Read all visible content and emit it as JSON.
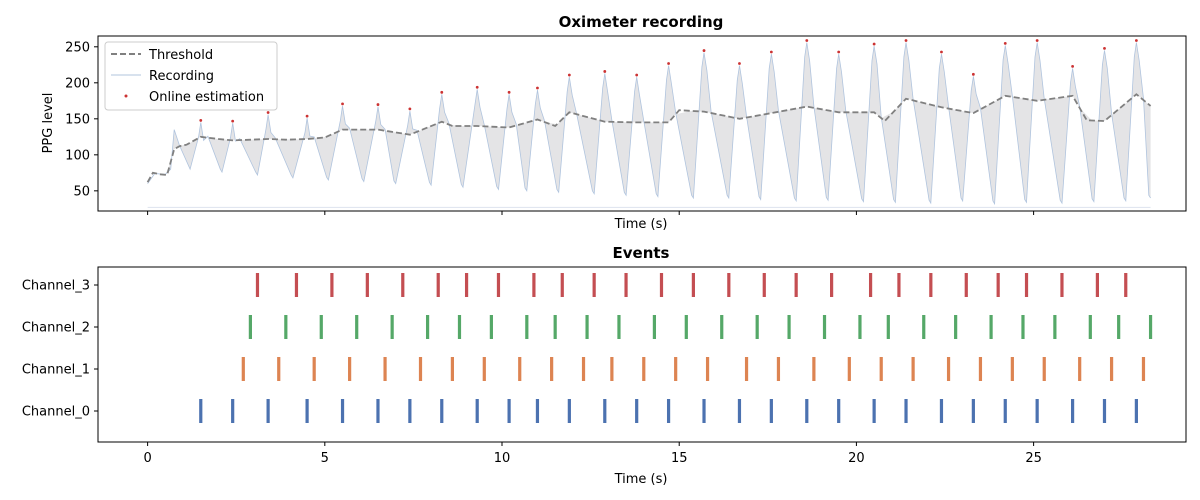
{
  "chart_data": [
    {
      "type": "line",
      "title": "Oximeter recording",
      "xlabel": "Time (s)",
      "ylabel": "PPG level",
      "xlim": [
        -1.4,
        29.3
      ],
      "ylim": [
        22,
        265
      ],
      "yticks": [
        50,
        100,
        150,
        200,
        250
      ],
      "xticks": [
        0,
        5,
        10,
        15,
        20,
        25
      ],
      "show_x_tick_labels": false,
      "legend": {
        "placement": "top-left",
        "entries": [
          "Threshold",
          "Recording",
          "Online estimation"
        ]
      },
      "colors": {
        "threshold": "#808080",
        "recording": "#b0c4de",
        "fill": "#e4e4e6",
        "peaks": "#cc3333"
      },
      "peaks": {
        "name": "Online estimation",
        "x": [
          1.5,
          2.4,
          3.4,
          4.5,
          5.5,
          6.5,
          7.4,
          8.3,
          9.3,
          10.2,
          11.0,
          11.9,
          12.9,
          13.8,
          14.7,
          15.7,
          16.7,
          17.6,
          18.6,
          19.5,
          20.5,
          21.4,
          22.4,
          23.3,
          24.2,
          25.1,
          26.1,
          27.0,
          27.9
        ],
        "y": [
          145,
          144,
          156,
          151,
          168,
          167,
          161,
          184,
          191,
          184,
          190,
          208,
          213,
          208,
          224,
          242,
          224,
          240,
          256,
          240,
          251,
          256,
          240,
          209,
          252,
          256,
          220,
          245,
          256
        ]
      },
      "threshold": {
        "name": "Threshold",
        "x": [
          0,
          0.15,
          0.35,
          0.55,
          0.75,
          0.9,
          1.1,
          1.5,
          2.0,
          2.4,
          3.4,
          3.9,
          4.5,
          5.0,
          5.5,
          6.5,
          7.4,
          8.3,
          8.6,
          9.3,
          10.2,
          11.0,
          11.5,
          11.9,
          12.9,
          13.8,
          14.7,
          15.0,
          15.7,
          16.7,
          17.6,
          18.6,
          19.5,
          20.5,
          20.8,
          21.4,
          22.4,
          23.3,
          24.2,
          25.1,
          26.1,
          26.5,
          27.0,
          27.9,
          28.3
        ],
        "y": [
          62,
          75,
          73,
          72,
          108,
          112,
          114,
          125,
          122,
          120,
          122,
          121,
          122,
          124,
          135,
          135,
          128,
          146,
          140,
          140,
          138,
          149,
          140,
          159,
          146,
          145,
          145,
          162,
          160,
          150,
          158,
          167,
          159,
          159,
          147,
          178,
          166,
          158,
          182,
          175,
          182,
          148,
          147,
          184,
          168
        ]
      },
      "recording_troughs": {
        "name": "Recording",
        "x": [
          1.2,
          2.1,
          3.1,
          4.1,
          5.1,
          6.1,
          7.0,
          8.0,
          8.9,
          9.9,
          10.7,
          11.6,
          12.6,
          13.5,
          14.4,
          15.4,
          16.4,
          17.3,
          18.3,
          19.2,
          20.2,
          21.1,
          22.1,
          23.0,
          23.9,
          24.8,
          25.8,
          26.7,
          27.6,
          28.3
        ],
        "y": [
          80,
          76,
          72,
          68,
          65,
          63,
          60,
          58,
          55,
          52,
          50,
          48,
          46,
          44,
          42,
          40,
          40,
          38,
          36,
          37,
          35,
          34,
          33,
          36,
          32,
          34,
          33,
          35,
          36,
          40
        ]
      }
    },
    {
      "type": "scatter",
      "title": "Events",
      "xlabel": "Time (s)",
      "ylabel": "",
      "xlim": [
        -1.4,
        29.3
      ],
      "xticks": [
        0,
        5,
        10,
        15,
        20,
        25
      ],
      "categories": [
        "Channel_0",
        "Channel_1",
        "Channel_2",
        "Channel_3"
      ],
      "series": [
        {
          "name": "Channel_0",
          "color": "#4c72b0",
          "x": [
            1.5,
            2.4,
            3.4,
            4.5,
            5.5,
            6.5,
            7.4,
            8.3,
            9.3,
            10.2,
            11.0,
            11.9,
            12.9,
            13.8,
            14.7,
            15.7,
            16.7,
            17.6,
            18.6,
            19.5,
            20.5,
            21.4,
            22.4,
            23.3,
            24.2,
            25.1,
            26.1,
            27.0,
            27.9
          ]
        },
        {
          "name": "Channel_1",
          "color": "#dd8452",
          "x": [
            2.7,
            3.7,
            4.7,
            5.7,
            6.7,
            7.7,
            8.6,
            9.5,
            10.5,
            11.4,
            12.3,
            13.1,
            14.0,
            14.9,
            15.8,
            16.9,
            17.8,
            18.8,
            19.8,
            20.7,
            21.6,
            22.6,
            23.5,
            24.4,
            25.3,
            26.3,
            27.2,
            28.1
          ]
        },
        {
          "name": "Channel_2",
          "color": "#55a868",
          "x": [
            2.9,
            3.9,
            4.9,
            5.9,
            6.9,
            7.9,
            8.8,
            9.7,
            10.7,
            11.5,
            12.4,
            13.3,
            14.3,
            15.2,
            16.2,
            17.2,
            18.1,
            19.1,
            20.1,
            20.9,
            21.9,
            22.8,
            23.8,
            24.7,
            25.6,
            26.6,
            27.4,
            28.3
          ]
        },
        {
          "name": "Channel_3",
          "color": "#c44e52",
          "x": [
            3.1,
            4.2,
            5.2,
            6.2,
            7.2,
            8.2,
            9.0,
            9.9,
            10.9,
            11.7,
            12.6,
            13.5,
            14.5,
            15.4,
            16.4,
            17.4,
            18.3,
            19.3,
            20.4,
            21.2,
            22.1,
            23.1,
            24.0,
            24.8,
            25.8,
            26.8,
            27.6
          ]
        }
      ]
    }
  ]
}
